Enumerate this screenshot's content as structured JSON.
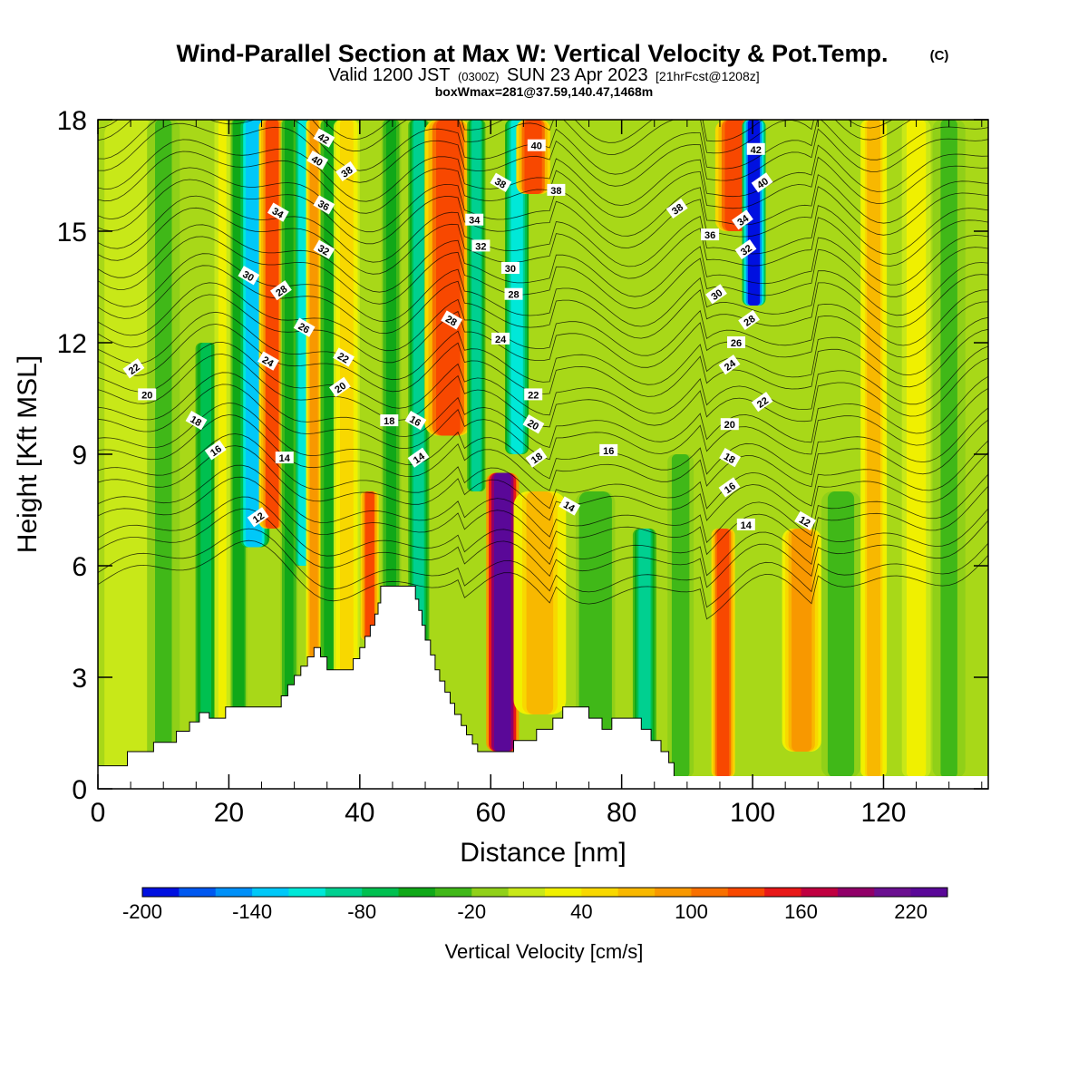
{
  "header": {
    "title": "Wind-Parallel Section at Max W: Vertical Velocity & Pot.Temp.",
    "copyright": "(C)",
    "subtitle_valid": "Valid 1200 JST",
    "subtitle_z": "(0300Z)",
    "subtitle_date": "SUN 23 Apr 2023",
    "subtitle_fcst": "[21hrFcst@1208z]",
    "box_info": "boxWmax=281@37.59,140.47,1468m"
  },
  "chart_data": {
    "type": "heatmap",
    "xlabel": "Distance [nm]",
    "ylabel": "Height [Kft MSL]",
    "xlim": [
      0,
      136
    ],
    "ylim": [
      0,
      18
    ],
    "x_ticks": [
      0,
      20,
      40,
      60,
      80,
      100,
      120
    ],
    "y_ticks": [
      0,
      3,
      6,
      9,
      12,
      15,
      18
    ],
    "colorbar": {
      "label": "Vertical Velocity [cm/s]",
      "range": [
        -200,
        240
      ],
      "tick_values": [
        -200,
        -140,
        -80,
        -20,
        40,
        100,
        160,
        220
      ],
      "tick_labels": [
        "-200",
        "-140",
        "-80",
        "-20",
        "40",
        "100",
        "160",
        "220"
      ],
      "colors": [
        "#0010e0",
        "#0058f0",
        "#0090f8",
        "#00c8f8",
        "#00e8d8",
        "#00d090",
        "#00c050",
        "#10a818",
        "#40b818",
        "#90d018",
        "#c8e818",
        "#f0f000",
        "#f8d800",
        "#f8b800",
        "#f89800",
        "#f87000",
        "#f84800",
        "#e81818",
        "#c00040",
        "#900068",
        "#6a1090",
        "#5a0898"
      ]
    },
    "terrain": [
      [
        0,
        0.62
      ],
      [
        4.5,
        0.62
      ],
      [
        4.5,
        1.0
      ],
      [
        8.5,
        1.0
      ],
      [
        8.5,
        1.25
      ],
      [
        12,
        1.25
      ],
      [
        12,
        1.55
      ],
      [
        14,
        1.55
      ],
      [
        14,
        1.8
      ],
      [
        15.5,
        1.8
      ],
      [
        15.5,
        2.05
      ],
      [
        17,
        2.05
      ],
      [
        17,
        1.9
      ],
      [
        19.5,
        1.9
      ],
      [
        19.5,
        2.2
      ],
      [
        28,
        2.2
      ],
      [
        28,
        2.5
      ],
      [
        29,
        2.5
      ],
      [
        29,
        2.8
      ],
      [
        30,
        2.8
      ],
      [
        30,
        3.05
      ],
      [
        31,
        3.05
      ],
      [
        31,
        3.3
      ],
      [
        32,
        3.3
      ],
      [
        32,
        3.55
      ],
      [
        33,
        3.55
      ],
      [
        33,
        3.8
      ],
      [
        34,
        3.8
      ],
      [
        34,
        3.55
      ],
      [
        35,
        3.55
      ],
      [
        35,
        3.2
      ],
      [
        39,
        3.2
      ],
      [
        39,
        3.5
      ],
      [
        40,
        3.5
      ],
      [
        40,
        3.8
      ],
      [
        40.8,
        3.8
      ],
      [
        40.8,
        4.1
      ],
      [
        41.6,
        4.1
      ],
      [
        41.6,
        4.4
      ],
      [
        42.3,
        4.4
      ],
      [
        42.3,
        4.7
      ],
      [
        42.8,
        4.7
      ],
      [
        42.8,
        5.0
      ],
      [
        43.2,
        5.0
      ],
      [
        43.2,
        5.45
      ],
      [
        48.5,
        5.45
      ],
      [
        48.5,
        5.1
      ],
      [
        49,
        5.1
      ],
      [
        49,
        4.8
      ],
      [
        49.5,
        4.8
      ],
      [
        49.5,
        4.4
      ],
      [
        50,
        4.4
      ],
      [
        50,
        4.0
      ],
      [
        50.8,
        4.0
      ],
      [
        50.8,
        3.6
      ],
      [
        51.5,
        3.6
      ],
      [
        51.5,
        3.2
      ],
      [
        52.2,
        3.2
      ],
      [
        52.2,
        2.9
      ],
      [
        53,
        2.9
      ],
      [
        53,
        2.6
      ],
      [
        53.8,
        2.6
      ],
      [
        53.8,
        2.3
      ],
      [
        54.5,
        2.3
      ],
      [
        54.5,
        2.0
      ],
      [
        55.5,
        2.0
      ],
      [
        55.5,
        1.7
      ],
      [
        56.3,
        1.7
      ],
      [
        56.3,
        1.45
      ],
      [
        57.2,
        1.45
      ],
      [
        57.2,
        1.2
      ],
      [
        58,
        1.2
      ],
      [
        58,
        1.0
      ],
      [
        63.5,
        1.0
      ],
      [
        63.5,
        1.3
      ],
      [
        67,
        1.3
      ],
      [
        67,
        1.6
      ],
      [
        69.5,
        1.6
      ],
      [
        69.5,
        1.9
      ],
      [
        71,
        1.9
      ],
      [
        71,
        2.2
      ],
      [
        75,
        2.2
      ],
      [
        75,
        1.9
      ],
      [
        77,
        1.9
      ],
      [
        77,
        1.6
      ],
      [
        78.5,
        1.6
      ],
      [
        78.5,
        1.9
      ],
      [
        83,
        1.9
      ],
      [
        83,
        1.6
      ],
      [
        84.5,
        1.6
      ],
      [
        84.5,
        1.3
      ],
      [
        86,
        1.3
      ],
      [
        86,
        1.0
      ],
      [
        87.2,
        1.0
      ],
      [
        87.2,
        0.7
      ],
      [
        88,
        0.7
      ],
      [
        88,
        0.28
      ],
      [
        136,
        0.28
      ]
    ],
    "theta_isentropes": [
      12,
      14,
      16,
      18,
      20,
      22,
      24,
      26,
      28,
      30,
      32,
      34,
      36,
      38,
      40,
      42
    ],
    "theta_labels": [
      {
        "value": 12,
        "x": 24.5,
        "y": 7.3
      },
      {
        "value": 12,
        "x": 108,
        "y": 7.2
      },
      {
        "value": 14,
        "x": 28.5,
        "y": 8.9
      },
      {
        "value": 14,
        "x": 49,
        "y": 8.9
      },
      {
        "value": 14,
        "x": 72,
        "y": 7.6
      },
      {
        "value": 14,
        "x": 99,
        "y": 7.1
      },
      {
        "value": 16,
        "x": 18,
        "y": 9.1
      },
      {
        "value": 16,
        "x": 48.5,
        "y": 9.9
      },
      {
        "value": 16,
        "x": 78,
        "y": 9.1
      },
      {
        "value": 16,
        "x": 96.5,
        "y": 8.1
      },
      {
        "value": 18,
        "x": 15,
        "y": 9.9
      },
      {
        "value": 18,
        "x": 44.5,
        "y": 9.9
      },
      {
        "value": 18,
        "x": 67,
        "y": 8.9
      },
      {
        "value": 18,
        "x": 96.5,
        "y": 8.9
      },
      {
        "value": 20,
        "x": 7.5,
        "y": 10.6
      },
      {
        "value": 20,
        "x": 37,
        "y": 10.8
      },
      {
        "value": 20,
        "x": 66.5,
        "y": 9.8
      },
      {
        "value": 20,
        "x": 96.5,
        "y": 9.8
      },
      {
        "value": 22,
        "x": 5.5,
        "y": 11.3
      },
      {
        "value": 22,
        "x": 37.5,
        "y": 11.6
      },
      {
        "value": 22,
        "x": 66.5,
        "y": 10.6
      },
      {
        "value": 22,
        "x": 101.5,
        "y": 10.4
      },
      {
        "value": 24,
        "x": 26,
        "y": 11.5
      },
      {
        "value": 24,
        "x": 61.5,
        "y": 12.1
      },
      {
        "value": 24,
        "x": 96.5,
        "y": 11.4
      },
      {
        "value": 26,
        "x": 31.5,
        "y": 12.4
      },
      {
        "value": 26,
        "x": 97.5,
        "y": 12.0
      },
      {
        "value": 28,
        "x": 28,
        "y": 13.4
      },
      {
        "value": 28,
        "x": 54,
        "y": 12.6
      },
      {
        "value": 28,
        "x": 63.5,
        "y": 13.3
      },
      {
        "value": 28,
        "x": 99.5,
        "y": 12.6
      },
      {
        "value": 30,
        "x": 23,
        "y": 13.8
      },
      {
        "value": 30,
        "x": 63,
        "y": 14.0
      },
      {
        "value": 30,
        "x": 94.5,
        "y": 13.3
      },
      {
        "value": 32,
        "x": 34.5,
        "y": 14.5
      },
      {
        "value": 32,
        "x": 58.5,
        "y": 14.6
      },
      {
        "value": 32,
        "x": 99,
        "y": 14.5
      },
      {
        "value": 34,
        "x": 27.5,
        "y": 15.5
      },
      {
        "value": 34,
        "x": 57.5,
        "y": 15.3
      },
      {
        "value": 34,
        "x": 98.5,
        "y": 15.3
      },
      {
        "value": 36,
        "x": 34.5,
        "y": 15.7
      },
      {
        "value": 36,
        "x": 93.5,
        "y": 14.9
      },
      {
        "value": 38,
        "x": 38,
        "y": 16.6
      },
      {
        "value": 38,
        "x": 61.5,
        "y": 16.3
      },
      {
        "value": 38,
        "x": 70,
        "y": 16.1
      },
      {
        "value": 38,
        "x": 88.5,
        "y": 15.6
      },
      {
        "value": 40,
        "x": 33.5,
        "y": 16.9
      },
      {
        "value": 40,
        "x": 67,
        "y": 17.3
      },
      {
        "value": 40,
        "x": 101.5,
        "y": 16.3
      },
      {
        "value": 42,
        "x": 34.5,
        "y": 17.5
      },
      {
        "value": 42,
        "x": 100.5,
        "y": 17.2
      }
    ],
    "w_bands": [
      {
        "x": 5,
        "w": 4,
        "v": 0,
        "y0": 0,
        "y1": 18
      },
      {
        "x": 10,
        "w": 2.5,
        "v": -25,
        "y0": 0,
        "y1": 18
      },
      {
        "x": 16.5,
        "w": 1.6,
        "v": -75,
        "y0": 0.5,
        "y1": 12
      },
      {
        "x": 19,
        "w": 1.2,
        "v": 25,
        "y0": 1,
        "y1": 18
      },
      {
        "x": 21.5,
        "w": 1.3,
        "v": -55,
        "y0": 2,
        "y1": 18
      },
      {
        "x": 23.8,
        "w": 2.4,
        "v": -135,
        "y0": 6.5,
        "y1": 18
      },
      {
        "x": 26.6,
        "w": 2.0,
        "v": 125,
        "y0": 7,
        "y1": 18
      },
      {
        "x": 29.2,
        "w": 1.3,
        "v": -45,
        "y0": 2,
        "y1": 18
      },
      {
        "x": 31.3,
        "w": 1.3,
        "v": -110,
        "y0": 6,
        "y1": 18
      },
      {
        "x": 33.0,
        "w": 1.2,
        "v": 85,
        "y0": 3,
        "y1": 18
      },
      {
        "x": 35.6,
        "w": 1.6,
        "v": -60,
        "y0": 3,
        "y1": 18
      },
      {
        "x": 38.0,
        "w": 2.0,
        "v": 50,
        "y0": 3,
        "y1": 18
      },
      {
        "x": 41.5,
        "w": 1.4,
        "v": 125,
        "y0": 4,
        "y1": 8
      },
      {
        "x": 44.8,
        "w": 1.5,
        "v": -50,
        "y0": 5.4,
        "y1": 18
      },
      {
        "x": 49.0,
        "w": 1.6,
        "v": -90,
        "y0": 3.5,
        "y1": 18
      },
      {
        "x": 53.5,
        "w": 3.6,
        "v": 135,
        "y0": 9.5,
        "y1": 18
      },
      {
        "x": 57.8,
        "w": 1.4,
        "v": -95,
        "y0": 8,
        "y1": 18
      },
      {
        "x": 61.8,
        "w": 2.5,
        "v": 245,
        "y0": 1,
        "y1": 8.5
      },
      {
        "x": 64.0,
        "w": 1.8,
        "v": -120,
        "y0": 9,
        "y1": 18
      },
      {
        "x": 66.5,
        "w": 2.6,
        "v": 135,
        "y0": 16,
        "y1": 18
      },
      {
        "x": 67.5,
        "w": 4,
        "v": 65,
        "y0": 2,
        "y1": 8
      },
      {
        "x": 76,
        "w": 3,
        "v": -40,
        "y0": 1.5,
        "y1": 8
      },
      {
        "x": 83.5,
        "w": 1.8,
        "v": -95,
        "y0": 1,
        "y1": 7
      },
      {
        "x": 89,
        "w": 2.0,
        "v": -30,
        "y0": 0.3,
        "y1": 9
      },
      {
        "x": 95.5,
        "w": 1.8,
        "v": 130,
        "y0": 0.3,
        "y1": 7
      },
      {
        "x": 97.3,
        "w": 3.0,
        "v": 130,
        "y0": 15,
        "y1": 18
      },
      {
        "x": 100.2,
        "w": 1.8,
        "v": -190,
        "y0": 13,
        "y1": 18
      },
      {
        "x": 107.5,
        "w": 3.0,
        "v": 80,
        "y0": 1,
        "y1": 7
      },
      {
        "x": 113.5,
        "w": 3.0,
        "v": -30,
        "y0": 0.3,
        "y1": 8
      },
      {
        "x": 118.5,
        "w": 2.0,
        "v": 60,
        "y0": 0.3,
        "y1": 18
      },
      {
        "x": 125,
        "w": 2.2,
        "v": 30,
        "y0": 0.3,
        "y1": 18
      },
      {
        "x": 130,
        "w": 2.5,
        "v": -25,
        "y0": 0.3,
        "y1": 18
      }
    ]
  }
}
